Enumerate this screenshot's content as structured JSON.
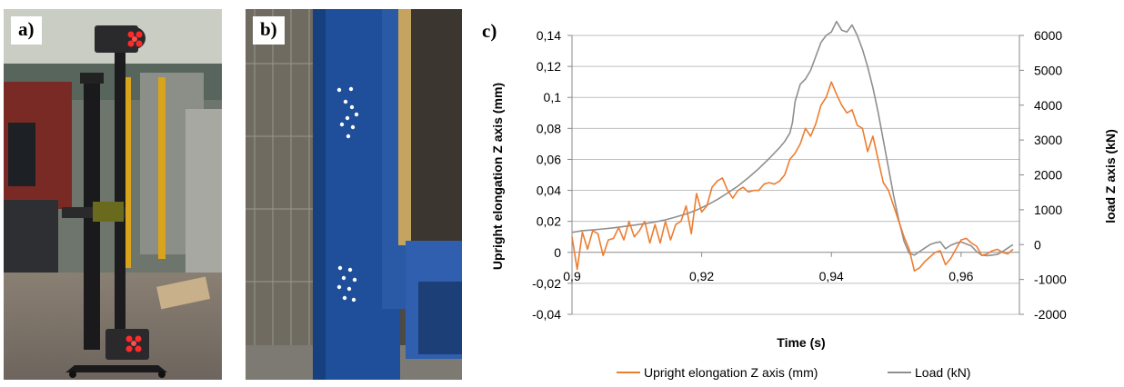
{
  "panels": {
    "a_label": "a)",
    "b_label": "b)",
    "c_label": "c)"
  },
  "colors": {
    "elongation": "#ed7d31",
    "load": "#8f8f8f",
    "grid": "#bfbfbf",
    "axis": "#888888"
  },
  "chart_data": {
    "type": "line",
    "title": "",
    "xlabel": "Time (s)",
    "ylabel": "Upright elongation Z axis (mm)",
    "y2label": "load Z axis (kN)",
    "xlim": [
      0.9,
      0.969
    ],
    "ylim": [
      -0.04,
      0.14
    ],
    "y2lim": [
      -2000,
      6000
    ],
    "xticks": [
      0.9,
      0.92,
      0.94,
      0.96
    ],
    "xtick_labels": [
      "0,9",
      "0,92",
      "0,94",
      "0,96"
    ],
    "yticks": [
      -0.04,
      -0.02,
      0,
      0.02,
      0.04,
      0.06,
      0.08,
      0.1,
      0.12,
      0.14
    ],
    "ytick_labels": [
      "-0,04",
      "-0,02",
      "0",
      "0,02",
      "0,04",
      "0,06",
      "0,08",
      "0,1",
      "0,12",
      "0,14"
    ],
    "y2ticks": [
      -2000,
      -1000,
      0,
      1000,
      2000,
      3000,
      4000,
      5000,
      6000
    ],
    "y2tick_labels": [
      "-2000",
      "-1000",
      "0",
      "1000",
      "2000",
      "3000",
      "4000",
      "5000",
      "6000"
    ],
    "grid": true,
    "legend_position": "bottom",
    "series": [
      {
        "name": "Upright elongation Z axis (mm)",
        "axis": "left",
        "x": [
          0.9,
          0.9008,
          0.9016,
          0.9024,
          0.9032,
          0.904,
          0.9048,
          0.9056,
          0.9064,
          0.9072,
          0.908,
          0.9088,
          0.9096,
          0.9104,
          0.9112,
          0.912,
          0.9128,
          0.9136,
          0.9144,
          0.9152,
          0.916,
          0.9168,
          0.9176,
          0.9184,
          0.9192,
          0.92,
          0.9208,
          0.9216,
          0.9224,
          0.9232,
          0.924,
          0.9248,
          0.9256,
          0.9264,
          0.9272,
          0.928,
          0.9288,
          0.9296,
          0.9304,
          0.9312,
          0.932,
          0.9328,
          0.9336,
          0.9344,
          0.9352,
          0.936,
          0.9368,
          0.9376,
          0.9384,
          0.9392,
          0.94,
          0.9408,
          0.9416,
          0.9424,
          0.9432,
          0.944,
          0.9448,
          0.9456,
          0.9464,
          0.9472,
          0.948,
          0.9488,
          0.9496,
          0.9504,
          0.9512,
          0.952,
          0.9528,
          0.9536,
          0.9544,
          0.9552,
          0.956,
          0.9568,
          0.9576,
          0.9584,
          0.9592,
          0.96,
          0.9608,
          0.9616,
          0.9624,
          0.9632,
          0.964,
          0.9648,
          0.9656,
          0.9664,
          0.9672,
          0.968
        ],
        "y": [
          0.01,
          -0.011,
          0.013,
          0.002,
          0.014,
          0.012,
          -0.002,
          0.008,
          0.009,
          0.016,
          0.008,
          0.02,
          0.01,
          0.014,
          0.02,
          0.006,
          0.018,
          0.006,
          0.02,
          0.008,
          0.018,
          0.02,
          0.03,
          0.012,
          0.038,
          0.026,
          0.03,
          0.042,
          0.046,
          0.048,
          0.04,
          0.035,
          0.04,
          0.042,
          0.039,
          0.04,
          0.04,
          0.044,
          0.045,
          0.044,
          0.046,
          0.05,
          0.06,
          0.064,
          0.07,
          0.08,
          0.075,
          0.083,
          0.095,
          0.1,
          0.11,
          0.102,
          0.095,
          0.09,
          0.092,
          0.082,
          0.08,
          0.065,
          0.075,
          0.06,
          0.045,
          0.04,
          0.03,
          0.02,
          0.01,
          0.002,
          -0.012,
          -0.01,
          -0.006,
          -0.003,
          0.0,
          0.001,
          -0.008,
          -0.004,
          0.002,
          0.008,
          0.009,
          0.006,
          0.004,
          -0.002,
          -0.001,
          0.001,
          0.002,
          0.0,
          -0.001,
          0.002
        ]
      },
      {
        "name": "Load (kN)",
        "axis": "right",
        "x": [
          0.9,
          0.9016,
          0.9032,
          0.9048,
          0.9064,
          0.908,
          0.9096,
          0.9112,
          0.9128,
          0.9144,
          0.916,
          0.9176,
          0.9192,
          0.9208,
          0.9224,
          0.924,
          0.9256,
          0.9272,
          0.9288,
          0.9304,
          0.932,
          0.9328,
          0.9336,
          0.934,
          0.9344,
          0.9352,
          0.936,
          0.9368,
          0.9376,
          0.9384,
          0.9392,
          0.94,
          0.9408,
          0.9416,
          0.9424,
          0.9432,
          0.944,
          0.9448,
          0.9456,
          0.9464,
          0.9472,
          0.948,
          0.9488,
          0.9496,
          0.9504,
          0.9512,
          0.952,
          0.9528,
          0.9536,
          0.9544,
          0.9552,
          0.956,
          0.9568,
          0.9576,
          0.9584,
          0.9592,
          0.96,
          0.9608,
          0.9616,
          0.9624,
          0.9632,
          0.964,
          0.9648,
          0.9656,
          0.9664,
          0.9672,
          0.968
        ],
        "y": [
          350,
          400,
          420,
          450,
          480,
          520,
          560,
          600,
          650,
          710,
          790,
          880,
          990,
          1130,
          1290,
          1480,
          1680,
          1920,
          2180,
          2470,
          2780,
          2960,
          3200,
          3500,
          4100,
          4600,
          4750,
          5000,
          5400,
          5800,
          6000,
          6100,
          6400,
          6150,
          6100,
          6300,
          6000,
          5600,
          5100,
          4500,
          3800,
          3000,
          2200,
          1400,
          700,
          100,
          -250,
          -300,
          -200,
          -100,
          0,
          50,
          80,
          -120,
          -20,
          40,
          80,
          20,
          -40,
          -200,
          -300,
          -320,
          -300,
          -280,
          -200,
          -100,
          0
        ]
      }
    ]
  }
}
